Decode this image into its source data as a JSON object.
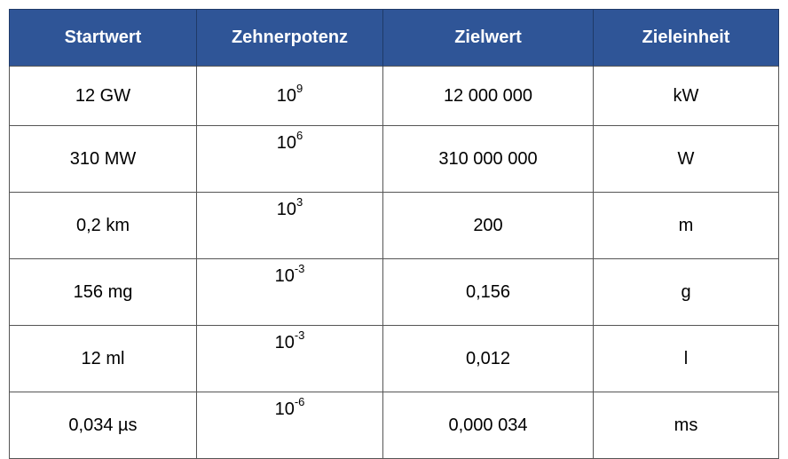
{
  "table": {
    "headers": [
      "Startwert",
      "Zehnerpotenz",
      "Zielwert",
      "Zieleinheit"
    ],
    "rows": [
      {
        "start": "12 GW",
        "base": "10",
        "exp": "9",
        "target": "12 000 000",
        "unit": "kW"
      },
      {
        "start": "310 MW",
        "base": "10",
        "exp": "6",
        "target": "310 000 000",
        "unit": "W"
      },
      {
        "start": "0,2 km",
        "base": "10",
        "exp": "3",
        "target": "200",
        "unit": "m"
      },
      {
        "start": "156 mg",
        "base": "10",
        "exp": "-3",
        "target": "0,156",
        "unit": "g"
      },
      {
        "start": "12 ml",
        "base": "10",
        "exp": "-3",
        "target": "0,012",
        "unit": "l"
      },
      {
        "start": "0,034 µs",
        "base": "10",
        "exp": "-6",
        "target": "0,000 034",
        "unit": "ms"
      }
    ],
    "colors": {
      "header_bg": "#2f5597",
      "header_text": "#ffffff",
      "border": "#555555"
    }
  }
}
